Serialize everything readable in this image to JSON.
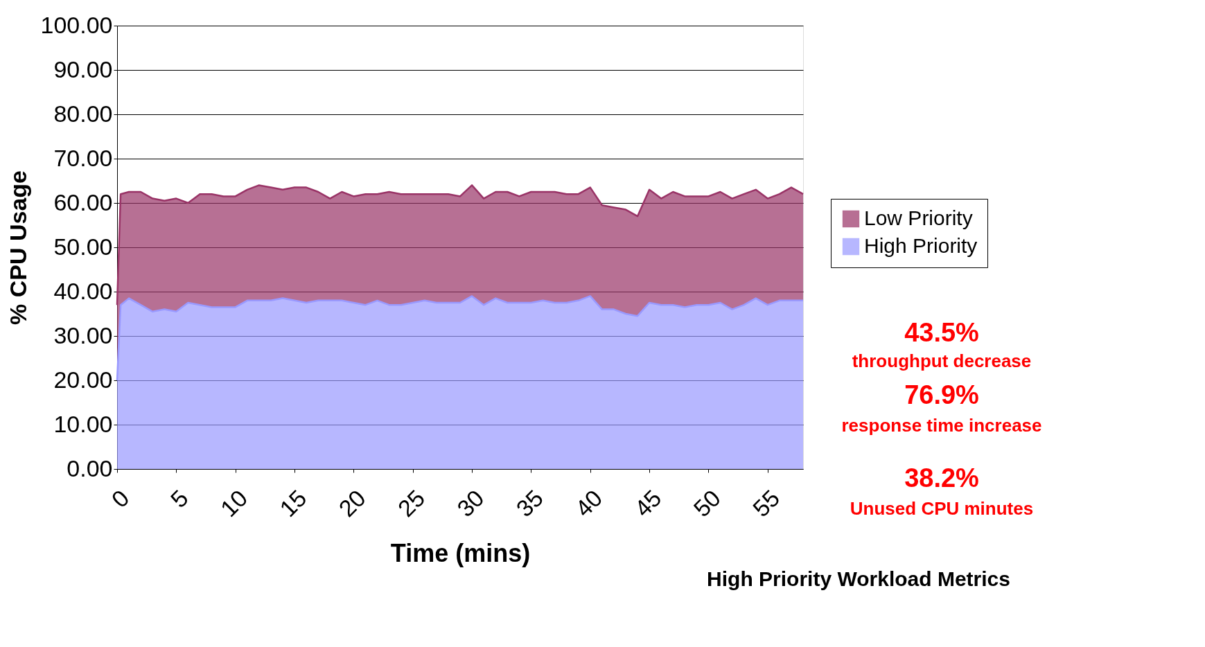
{
  "chart_data": {
    "type": "area",
    "stacked": true,
    "xlabel": "Time (mins)",
    "ylabel": "% CPU Usage",
    "x": [
      0,
      0.3,
      1,
      2,
      3,
      4,
      5,
      6,
      7,
      8,
      9,
      10,
      11,
      12,
      13,
      14,
      15,
      16,
      17,
      18,
      19,
      20,
      21,
      22,
      23,
      24,
      25,
      26,
      27,
      28,
      29,
      30,
      31,
      32,
      33,
      34,
      35,
      36,
      37,
      38,
      39,
      40,
      41,
      42,
      43,
      44,
      45,
      46,
      47,
      48,
      49,
      50,
      51,
      52,
      53,
      54,
      55,
      56,
      57,
      58
    ],
    "series": [
      {
        "name": "High Priority",
        "color": "#9999ff",
        "values": [
          20,
          37,
          38.5,
          37,
          35.5,
          36,
          35.5,
          37.5,
          37,
          36.5,
          36.5,
          36.5,
          38,
          38,
          38,
          38.5,
          38,
          37.5,
          38,
          38,
          38,
          37.5,
          37,
          38,
          37,
          37,
          37.5,
          38,
          37.5,
          37.5,
          37.5,
          39,
          37,
          38.5,
          37.5,
          37.5,
          37.5,
          38,
          37.5,
          37.5,
          38,
          39,
          36,
          36,
          35,
          34.5,
          37.5,
          37,
          37,
          36.5,
          37,
          37,
          37.5,
          36,
          37,
          38.5,
          37,
          38,
          38,
          38
        ]
      },
      {
        "name": "Low Priority",
        "color": "#993366",
        "values": [
          17,
          25,
          24,
          25.5,
          25.5,
          24.5,
          25.5,
          22.5,
          25,
          25.5,
          25,
          25,
          25,
          26,
          25.5,
          24.5,
          25.5,
          26,
          24.5,
          23,
          24.5,
          24,
          25,
          24,
          25.5,
          25,
          24.5,
          24,
          24.5,
          24.5,
          24,
          25,
          24,
          24,
          25,
          24,
          25,
          24.5,
          25,
          24.5,
          24,
          24.5,
          23.5,
          23,
          23.5,
          22.5,
          25.5,
          24,
          25.5,
          25,
          24.5,
          24.5,
          25,
          25,
          25,
          24.5,
          24,
          24,
          25.5,
          24
        ]
      }
    ],
    "xlim": [
      0,
      58
    ],
    "xticks": [
      0,
      5,
      10,
      15,
      20,
      25,
      30,
      35,
      40,
      45,
      50,
      55
    ],
    "ylim": [
      0,
      100
    ],
    "yticks": [
      {
        "value": 0,
        "label": "0.00"
      },
      {
        "value": 10,
        "label": "10.00"
      },
      {
        "value": 20,
        "label": "20.00"
      },
      {
        "value": 30,
        "label": "30.00"
      },
      {
        "value": 40,
        "label": "40.00"
      },
      {
        "value": 50,
        "label": "50.00"
      },
      {
        "value": 60,
        "label": "60.00"
      },
      {
        "value": 70,
        "label": "70.00"
      },
      {
        "value": 80,
        "label": "80.00"
      },
      {
        "value": 90,
        "label": "90.00"
      },
      {
        "value": 100,
        "label": "100.00"
      }
    ],
    "grid": "y",
    "legend": "right",
    "annotations": [
      "43.5%",
      "throughput decrease",
      "76.9%",
      "response time increase",
      "38.2%",
      "Unused CPU minutes",
      "High Priority Workload Metrics"
    ]
  }
}
